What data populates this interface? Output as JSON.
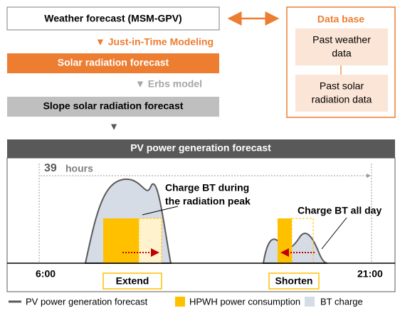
{
  "flow": {
    "weather": "Weather forecast  (MSM-GPV)",
    "jit": "▼ Just-in-Time Modeling",
    "solar": "Solar radiation forecast",
    "erbs": "▼ Erbs model",
    "slope": "Slope solar radiation forecast",
    "down": "▼"
  },
  "database": {
    "title": "Data base",
    "items": [
      [
        "Past weather",
        "data"
      ],
      [
        "Past solar",
        "radiation data"
      ]
    ]
  },
  "forecast": {
    "title": "PV power generation forecast",
    "duration": {
      "number": "39",
      "unit": "hours"
    },
    "start": "6:00",
    "end": "21:00",
    "peak_note": [
      "Charge BT during",
      "the radiation peak"
    ],
    "allday_note": "Charge BT all day",
    "extend": "Extend",
    "shorten": "Shorten"
  },
  "legend": [
    "PV power generation forecast",
    "HPWH power consumption",
    "BT charge"
  ]
}
